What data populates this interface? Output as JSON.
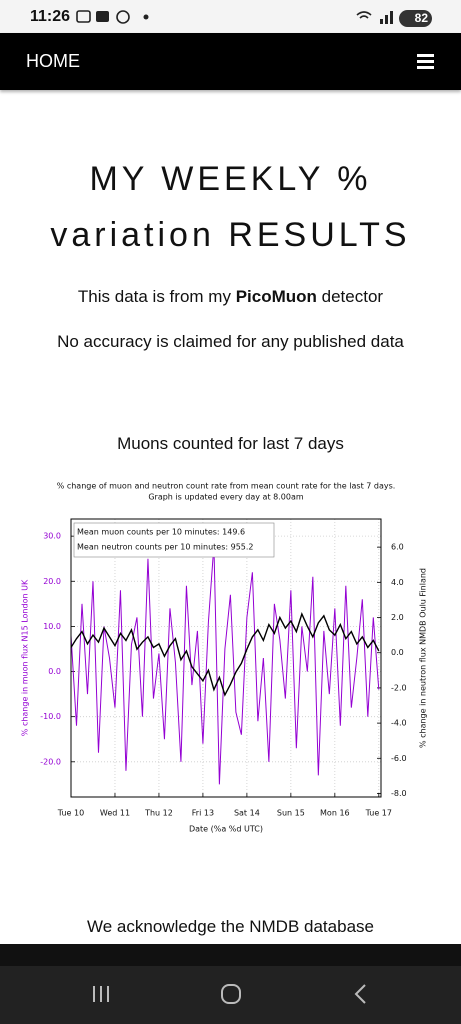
{
  "status_bar": {
    "time": "11:26",
    "battery": "82"
  },
  "nav": {
    "title": "HOME"
  },
  "header": {
    "line1": "MY WEEKLY %",
    "line2": "variation RESULTS"
  },
  "intro": {
    "before": "This data is from my",
    "brand": "PicoMuon",
    "after": "detector"
  },
  "disclaimer": "No accuracy is claimed for any published data",
  "section_title": "Muons counted for last 7 days",
  "chart_data": {
    "type": "line",
    "title": "% change of muon and neutron count rate from mean count rate for the last 7 days.",
    "subtitle": "Graph is updated every day at 8.00am",
    "annotations": [
      "Mean muon counts per 10 minutes: 149.6",
      "Mean neutron counts per 10 minutes: 955.2"
    ],
    "xlabel": "Date (%a %d UTC)",
    "ylabel": "% change in muon flux N15 London UK",
    "y2label": "% change in neutron flux NMDB Oulu Finland",
    "x": [
      0,
      0.125,
      0.25,
      0.375,
      0.5,
      0.625,
      0.75,
      0.875,
      1,
      1.125,
      1.25,
      1.375,
      1.5,
      1.625,
      1.75,
      1.875,
      2,
      2.125,
      2.25,
      2.375,
      2.5,
      2.625,
      2.75,
      2.875,
      3,
      3.125,
      3.25,
      3.375,
      3.5,
      3.625,
      3.75,
      3.875,
      4,
      4.125,
      4.25,
      4.375,
      4.5,
      4.625,
      4.75,
      4.875,
      5,
      5.125,
      5.25,
      5.375,
      5.5,
      5.625,
      5.75,
      5.875,
      6,
      6.125,
      6.25,
      6.375,
      6.5,
      6.625,
      6.75,
      6.875,
      7
    ],
    "xlim": [
      0,
      7.05
    ],
    "xticks": [
      {
        "value": 0,
        "label": "Tue 10"
      },
      {
        "value": 1,
        "label": "Wed 11"
      },
      {
        "value": 2,
        "label": "Thu 12"
      },
      {
        "value": 3,
        "label": "Fri 13"
      },
      {
        "value": 4,
        "label": "Sat 14"
      },
      {
        "value": 5,
        "label": "Sun 15"
      },
      {
        "value": 6,
        "label": "Mon 16"
      },
      {
        "value": 7,
        "label": "Tue 17"
      }
    ],
    "ylim": [
      -27.8,
      33.8
    ],
    "yticks": [
      {
        "value": 30,
        "label": "30.0"
      },
      {
        "value": 20,
        "label": "20.0"
      },
      {
        "value": 10,
        "label": "10.0"
      },
      {
        "value": 0,
        "label": "0.0"
      },
      {
        "value": -10,
        "label": "-10.0"
      },
      {
        "value": -20,
        "label": "-20.0"
      }
    ],
    "y2lim": [
      -8.2,
      7.6
    ],
    "y2ticks": [
      {
        "value": 6,
        "label": "6.0"
      },
      {
        "value": 4,
        "label": "4.0"
      },
      {
        "value": 2,
        "label": "2.0"
      },
      {
        "value": 0,
        "label": "0.0"
      },
      {
        "value": -2,
        "label": "-2.0"
      },
      {
        "value": -4,
        "label": "-4.0"
      },
      {
        "value": -6,
        "label": "-6.0"
      },
      {
        "value": -8,
        "label": "-8.0"
      }
    ],
    "grid": true,
    "series": [
      {
        "name": "muon",
        "color": "#9400d3",
        "values": [
          8,
          -12,
          15,
          -5,
          20,
          -18,
          10,
          3,
          -8,
          18,
          -22,
          6,
          12,
          -10,
          25,
          -6,
          4,
          -15,
          14,
          2,
          -20,
          19,
          -3,
          9,
          -16,
          11,
          28,
          -25,
          5,
          17,
          -9,
          -14,
          12,
          22,
          -11,
          3,
          -20,
          15,
          7,
          -6,
          18,
          -17,
          10,
          0,
          21,
          -23,
          9,
          -5,
          14,
          -12,
          19,
          -8,
          3,
          16,
          -10,
          12,
          -4
        ]
      },
      {
        "name": "neutron",
        "color": "#000000",
        "axis": "y2",
        "values": [
          0.3,
          0.8,
          1.2,
          0.5,
          1.0,
          0.6,
          1.4,
          0.9,
          0.4,
          1.1,
          0.7,
          1.3,
          0.2,
          0.6,
          0.9,
          0.3,
          0.5,
          -0.2,
          0.4,
          0.8,
          -0.4,
          0.1,
          -0.8,
          -1.2,
          -1.6,
          -1.0,
          -2.1,
          -1.4,
          -2.4,
          -1.8,
          -1.1,
          -0.6,
          0.2,
          0.9,
          1.3,
          0.7,
          1.6,
          1.1,
          2.0,
          1.4,
          1.8,
          1.2,
          2.2,
          1.5,
          0.9,
          1.7,
          2.1,
          1.3,
          1.0,
          1.6,
          0.8,
          1.2,
          0.5,
          0.9,
          0.3,
          0.7,
          0.1
        ]
      }
    ]
  },
  "footer_text": "We acknowledge the NMDB database"
}
